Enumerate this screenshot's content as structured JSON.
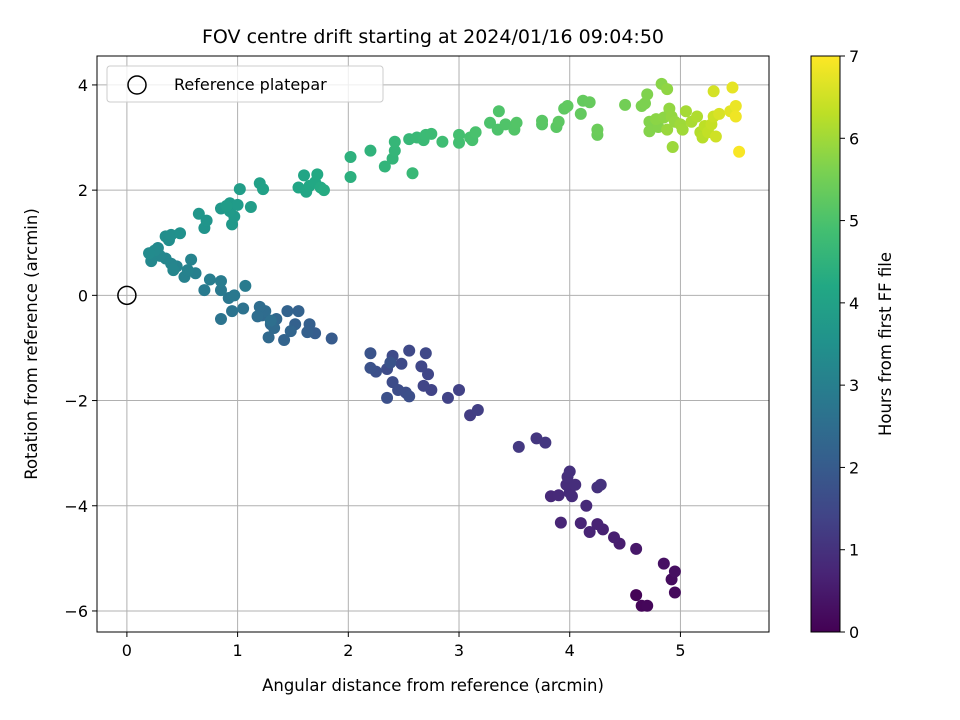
{
  "chart_data": {
    "type": "scatter",
    "title": "FOV centre drift starting at 2024/01/16 09:04:50",
    "xlabel": "Angular distance from reference (arcmin)",
    "ylabel": "Rotation from reference (arcmin)",
    "colorbar_label": "Hours from first FF file",
    "colormap": "viridis",
    "color_range": [
      0,
      7
    ],
    "colorbar_ticks": [
      0,
      1,
      2,
      3,
      4,
      5,
      6,
      7
    ],
    "xlim": [
      -0.27,
      5.8
    ],
    "ylim": [
      -6.4,
      4.55
    ],
    "xticks": [
      0,
      1,
      2,
      3,
      4,
      5
    ],
    "yticks": [
      -6,
      -4,
      -2,
      0,
      2,
      4
    ],
    "tick_labels_y": [
      "−6",
      "−4",
      "−2",
      "0",
      "2",
      "4"
    ],
    "grid": true,
    "legend": {
      "position": "upper-left",
      "entries": [
        "Reference platepar"
      ]
    },
    "reference_point": {
      "x": 0,
      "y": 0
    },
    "points": [
      {
        "x": 4.6,
        "y": -5.7,
        "t": 0.05
      },
      {
        "x": 4.65,
        "y": -5.9,
        "t": 0.1
      },
      {
        "x": 4.7,
        "y": -5.9,
        "t": 0.12
      },
      {
        "x": 4.95,
        "y": -5.65,
        "t": 0.18
      },
      {
        "x": 4.92,
        "y": -5.4,
        "t": 0.22
      },
      {
        "x": 4.95,
        "y": -5.25,
        "t": 0.28
      },
      {
        "x": 4.85,
        "y": -5.1,
        "t": 0.32
      },
      {
        "x": 4.6,
        "y": -4.82,
        "t": 0.45
      },
      {
        "x": 4.45,
        "y": -4.72,
        "t": 0.55
      },
      {
        "x": 4.4,
        "y": -4.6,
        "t": 0.6
      },
      {
        "x": 4.3,
        "y": -4.45,
        "t": 0.65
      },
      {
        "x": 4.25,
        "y": -4.35,
        "t": 0.68
      },
      {
        "x": 4.18,
        "y": -4.5,
        "t": 0.7
      },
      {
        "x": 4.1,
        "y": -4.33,
        "t": 0.72
      },
      {
        "x": 3.92,
        "y": -4.32,
        "t": 0.74
      },
      {
        "x": 4.15,
        "y": -4.0,
        "t": 0.8
      },
      {
        "x": 3.83,
        "y": -3.82,
        "t": 0.82
      },
      {
        "x": 3.9,
        "y": -3.8,
        "t": 0.84
      },
      {
        "x": 4.0,
        "y": -3.75,
        "t": 0.86
      },
      {
        "x": 4.02,
        "y": -3.82,
        "t": 0.88
      },
      {
        "x": 3.97,
        "y": -3.6,
        "t": 0.9
      },
      {
        "x": 4.05,
        "y": -3.6,
        "t": 0.92
      },
      {
        "x": 3.98,
        "y": -3.45,
        "t": 0.94
      },
      {
        "x": 4.0,
        "y": -3.35,
        "t": 0.96
      },
      {
        "x": 4.25,
        "y": -3.65,
        "t": 0.98
      },
      {
        "x": 4.28,
        "y": -3.6,
        "t": 1.0
      },
      {
        "x": 3.7,
        "y": -2.72,
        "t": 1.1
      },
      {
        "x": 3.78,
        "y": -2.8,
        "t": 1.12
      },
      {
        "x": 3.54,
        "y": -2.88,
        "t": 1.15
      },
      {
        "x": 3.1,
        "y": -2.28,
        "t": 1.25
      },
      {
        "x": 3.17,
        "y": -2.18,
        "t": 1.28
      },
      {
        "x": 3.0,
        "y": -1.8,
        "t": 1.35
      },
      {
        "x": 2.9,
        "y": -1.95,
        "t": 1.38
      },
      {
        "x": 2.75,
        "y": -1.8,
        "t": 1.4
      },
      {
        "x": 2.68,
        "y": -1.72,
        "t": 1.42
      },
      {
        "x": 2.72,
        "y": -1.5,
        "t": 1.45
      },
      {
        "x": 2.66,
        "y": -1.35,
        "t": 1.48
      },
      {
        "x": 2.7,
        "y": -1.1,
        "t": 1.5
      },
      {
        "x": 2.55,
        "y": -1.05,
        "t": 1.52
      },
      {
        "x": 2.48,
        "y": -1.3,
        "t": 1.55
      },
      {
        "x": 2.4,
        "y": -1.15,
        "t": 1.58
      },
      {
        "x": 2.35,
        "y": -1.4,
        "t": 1.6
      },
      {
        "x": 2.4,
        "y": -1.65,
        "t": 1.62
      },
      {
        "x": 2.45,
        "y": -1.8,
        "t": 1.64
      },
      {
        "x": 2.52,
        "y": -1.85,
        "t": 1.66
      },
      {
        "x": 2.55,
        "y": -1.92,
        "t": 1.68
      },
      {
        "x": 2.35,
        "y": -1.95,
        "t": 1.7
      },
      {
        "x": 2.25,
        "y": -1.45,
        "t": 1.72
      },
      {
        "x": 2.2,
        "y": -1.38,
        "t": 1.75
      },
      {
        "x": 2.2,
        "y": -1.1,
        "t": 1.78
      },
      {
        "x": 2.38,
        "y": -1.28,
        "t": 1.8
      },
      {
        "x": 1.85,
        "y": -0.82,
        "t": 2.0
      },
      {
        "x": 1.7,
        "y": -0.72,
        "t": 2.05
      },
      {
        "x": 1.65,
        "y": -0.55,
        "t": 2.1
      },
      {
        "x": 1.63,
        "y": -0.7,
        "t": 2.12
      },
      {
        "x": 1.52,
        "y": -0.55,
        "t": 2.15
      },
      {
        "x": 1.55,
        "y": -0.3,
        "t": 2.18
      },
      {
        "x": 1.45,
        "y": -0.3,
        "t": 2.2
      },
      {
        "x": 1.42,
        "y": -0.85,
        "t": 2.25
      },
      {
        "x": 1.48,
        "y": -0.68,
        "t": 2.28
      },
      {
        "x": 1.35,
        "y": -0.45,
        "t": 2.32
      },
      {
        "x": 1.3,
        "y": -0.55,
        "t": 2.35
      },
      {
        "x": 1.28,
        "y": -0.8,
        "t": 2.38
      },
      {
        "x": 1.33,
        "y": -0.62,
        "t": 2.4
      },
      {
        "x": 1.22,
        "y": -0.38,
        "t": 2.42
      },
      {
        "x": 1.25,
        "y": -0.3,
        "t": 2.45
      },
      {
        "x": 1.2,
        "y": -0.22,
        "t": 2.48
      },
      {
        "x": 1.18,
        "y": -0.4,
        "t": 2.5
      },
      {
        "x": 1.3,
        "y": -0.48,
        "t": 2.55
      },
      {
        "x": 1.05,
        "y": -0.25,
        "t": 2.62
      },
      {
        "x": 0.95,
        "y": -0.3,
        "t": 2.65
      },
      {
        "x": 0.85,
        "y": -0.45,
        "t": 2.7
      },
      {
        "x": 0.92,
        "y": -0.05,
        "t": 2.75
      },
      {
        "x": 0.97,
        "y": 0.0,
        "t": 2.8
      },
      {
        "x": 0.85,
        "y": 0.1,
        "t": 2.82
      },
      {
        "x": 0.7,
        "y": 0.1,
        "t": 2.85
      },
      {
        "x": 1.07,
        "y": 0.18,
        "t": 2.88
      },
      {
        "x": 0.85,
        "y": 0.27,
        "t": 2.9
      },
      {
        "x": 0.75,
        "y": 0.3,
        "t": 2.95
      },
      {
        "x": 0.62,
        "y": 0.42,
        "t": 3.0
      },
      {
        "x": 0.52,
        "y": 0.35,
        "t": 3.05
      },
      {
        "x": 0.55,
        "y": 0.48,
        "t": 3.08
      },
      {
        "x": 0.58,
        "y": 0.68,
        "t": 3.1
      },
      {
        "x": 0.45,
        "y": 0.55,
        "t": 3.12
      },
      {
        "x": 0.4,
        "y": 0.6,
        "t": 3.15
      },
      {
        "x": 0.42,
        "y": 0.48,
        "t": 3.18
      },
      {
        "x": 0.35,
        "y": 0.7,
        "t": 3.2
      },
      {
        "x": 0.3,
        "y": 0.75,
        "t": 3.22
      },
      {
        "x": 0.22,
        "y": 0.65,
        "t": 3.25
      },
      {
        "x": 0.28,
        "y": 0.9,
        "t": 3.28
      },
      {
        "x": 0.25,
        "y": 0.85,
        "t": 3.3
      },
      {
        "x": 0.2,
        "y": 0.8,
        "t": 3.32
      },
      {
        "x": 0.38,
        "y": 1.05,
        "t": 3.4
      },
      {
        "x": 0.35,
        "y": 1.12,
        "t": 3.42
      },
      {
        "x": 0.4,
        "y": 1.15,
        "t": 3.45
      },
      {
        "x": 0.48,
        "y": 1.18,
        "t": 3.5
      },
      {
        "x": 0.7,
        "y": 1.28,
        "t": 3.6
      },
      {
        "x": 0.72,
        "y": 1.42,
        "t": 3.62
      },
      {
        "x": 0.65,
        "y": 1.55,
        "t": 3.65
      },
      {
        "x": 0.85,
        "y": 1.65,
        "t": 3.7
      },
      {
        "x": 0.95,
        "y": 1.35,
        "t": 3.72
      },
      {
        "x": 0.97,
        "y": 1.5,
        "t": 3.74
      },
      {
        "x": 0.93,
        "y": 1.6,
        "t": 3.76
      },
      {
        "x": 0.93,
        "y": 1.75,
        "t": 3.78
      },
      {
        "x": 1.0,
        "y": 1.72,
        "t": 3.8
      },
      {
        "x": 0.9,
        "y": 1.7,
        "t": 3.82
      },
      {
        "x": 1.02,
        "y": 2.02,
        "t": 3.85
      },
      {
        "x": 1.12,
        "y": 1.68,
        "t": 3.88
      },
      {
        "x": 1.2,
        "y": 2.13,
        "t": 3.95
      },
      {
        "x": 1.23,
        "y": 2.02,
        "t": 3.98
      },
      {
        "x": 1.55,
        "y": 2.05,
        "t": 4.1
      },
      {
        "x": 1.6,
        "y": 2.28,
        "t": 4.12
      },
      {
        "x": 1.62,
        "y": 1.97,
        "t": 4.15
      },
      {
        "x": 1.65,
        "y": 2.08,
        "t": 4.18
      },
      {
        "x": 1.7,
        "y": 2.15,
        "t": 4.2
      },
      {
        "x": 1.72,
        "y": 2.3,
        "t": 4.22
      },
      {
        "x": 1.75,
        "y": 2.05,
        "t": 4.25
      },
      {
        "x": 1.78,
        "y": 2.0,
        "t": 4.28
      },
      {
        "x": 2.02,
        "y": 2.25,
        "t": 4.4
      },
      {
        "x": 2.02,
        "y": 2.63,
        "t": 4.45
      },
      {
        "x": 2.2,
        "y": 2.75,
        "t": 4.5
      },
      {
        "x": 2.33,
        "y": 2.45,
        "t": 4.55
      },
      {
        "x": 2.4,
        "y": 2.6,
        "t": 4.58
      },
      {
        "x": 2.42,
        "y": 2.75,
        "t": 4.6
      },
      {
        "x": 2.42,
        "y": 2.92,
        "t": 4.62
      },
      {
        "x": 2.55,
        "y": 2.97,
        "t": 4.65
      },
      {
        "x": 2.58,
        "y": 2.32,
        "t": 4.68
      },
      {
        "x": 2.62,
        "y": 3.0,
        "t": 4.7
      },
      {
        "x": 2.68,
        "y": 2.95,
        "t": 4.72
      },
      {
        "x": 2.7,
        "y": 3.05,
        "t": 4.74
      },
      {
        "x": 2.75,
        "y": 3.07,
        "t": 4.76
      },
      {
        "x": 2.85,
        "y": 2.92,
        "t": 4.8
      },
      {
        "x": 3.0,
        "y": 2.9,
        "t": 4.88
      },
      {
        "x": 3.0,
        "y": 3.05,
        "t": 4.9
      },
      {
        "x": 3.1,
        "y": 3.0,
        "t": 4.92
      },
      {
        "x": 3.12,
        "y": 2.95,
        "t": 4.94
      },
      {
        "x": 3.15,
        "y": 3.1,
        "t": 4.96
      },
      {
        "x": 3.28,
        "y": 3.28,
        "t": 5.0
      },
      {
        "x": 3.35,
        "y": 3.15,
        "t": 5.02
      },
      {
        "x": 3.36,
        "y": 3.5,
        "t": 5.04
      },
      {
        "x": 3.42,
        "y": 3.25,
        "t": 5.06
      },
      {
        "x": 3.5,
        "y": 3.15,
        "t": 5.08
      },
      {
        "x": 3.52,
        "y": 3.28,
        "t": 5.1
      },
      {
        "x": 3.75,
        "y": 3.25,
        "t": 5.15
      },
      {
        "x": 3.75,
        "y": 3.32,
        "t": 5.17
      },
      {
        "x": 3.88,
        "y": 3.2,
        "t": 5.2
      },
      {
        "x": 3.9,
        "y": 3.3,
        "t": 5.22
      },
      {
        "x": 3.95,
        "y": 3.55,
        "t": 5.25
      },
      {
        "x": 3.98,
        "y": 3.6,
        "t": 5.27
      },
      {
        "x": 4.1,
        "y": 3.45,
        "t": 5.3
      },
      {
        "x": 4.12,
        "y": 3.7,
        "t": 5.32
      },
      {
        "x": 4.18,
        "y": 3.67,
        "t": 5.34
      },
      {
        "x": 4.25,
        "y": 3.05,
        "t": 5.38
      },
      {
        "x": 4.25,
        "y": 3.15,
        "t": 5.4
      },
      {
        "x": 4.5,
        "y": 3.62,
        "t": 5.5
      },
      {
        "x": 4.65,
        "y": 3.6,
        "t": 5.6
      },
      {
        "x": 4.68,
        "y": 3.65,
        "t": 5.62
      },
      {
        "x": 4.7,
        "y": 3.82,
        "t": 5.65
      },
      {
        "x": 4.72,
        "y": 3.3,
        "t": 5.68
      },
      {
        "x": 4.72,
        "y": 3.12,
        "t": 5.7
      },
      {
        "x": 4.8,
        "y": 3.2,
        "t": 5.72
      },
      {
        "x": 4.83,
        "y": 4.02,
        "t": 5.75
      },
      {
        "x": 4.78,
        "y": 3.35,
        "t": 5.78
      },
      {
        "x": 4.85,
        "y": 3.38,
        "t": 5.8
      },
      {
        "x": 4.88,
        "y": 3.92,
        "t": 5.82
      },
      {
        "x": 4.9,
        "y": 3.55,
        "t": 5.85
      },
      {
        "x": 4.92,
        "y": 3.4,
        "t": 5.87
      },
      {
        "x": 4.95,
        "y": 3.3,
        "t": 5.9
      },
      {
        "x": 4.88,
        "y": 3.15,
        "t": 5.92
      },
      {
        "x": 4.93,
        "y": 2.82,
        "t": 5.95
      },
      {
        "x": 5.0,
        "y": 3.25,
        "t": 5.98
      },
      {
        "x": 5.02,
        "y": 3.15,
        "t": 6.0
      },
      {
        "x": 5.05,
        "y": 3.5,
        "t": 6.05
      },
      {
        "x": 5.1,
        "y": 3.3,
        "t": 6.1
      },
      {
        "x": 5.15,
        "y": 3.4,
        "t": 6.15
      },
      {
        "x": 5.18,
        "y": 3.1,
        "t": 6.2
      },
      {
        "x": 5.2,
        "y": 3.0,
        "t": 6.25
      },
      {
        "x": 5.22,
        "y": 3.22,
        "t": 6.3
      },
      {
        "x": 5.25,
        "y": 3.1,
        "t": 6.35
      },
      {
        "x": 5.28,
        "y": 3.25,
        "t": 6.4
      },
      {
        "x": 5.3,
        "y": 3.4,
        "t": 6.45
      },
      {
        "x": 5.32,
        "y": 3.02,
        "t": 6.5
      },
      {
        "x": 5.3,
        "y": 3.88,
        "t": 6.55
      },
      {
        "x": 5.35,
        "y": 3.45,
        "t": 6.6
      },
      {
        "x": 5.45,
        "y": 3.5,
        "t": 6.7
      },
      {
        "x": 5.47,
        "y": 3.95,
        "t": 6.75
      },
      {
        "x": 5.5,
        "y": 3.6,
        "t": 6.8
      },
      {
        "x": 5.5,
        "y": 3.4,
        "t": 6.85
      },
      {
        "x": 5.53,
        "y": 2.73,
        "t": 6.95
      }
    ]
  }
}
